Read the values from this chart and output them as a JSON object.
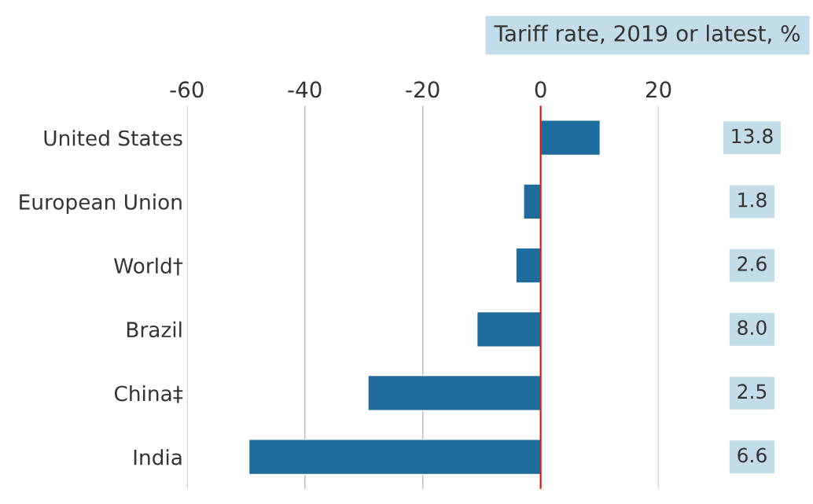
{
  "chart_data": [
    {
      "type": "bar",
      "orientation": "horizontal",
      "categories": [
        "United States",
        "European Union",
        "World†",
        "Brazil",
        "China‡",
        "India"
      ],
      "values": [
        10.1,
        -2.9,
        -4.2,
        -10.8,
        -29.3,
        -49.5
      ],
      "color": "#1f6b9c",
      "xlim": [
        -60,
        20
      ],
      "xticks": [
        -60,
        -40,
        -20,
        0,
        20
      ],
      "grid": "x",
      "ref_lines": [
        {
          "axis": "x",
          "value": 0,
          "color": "#e3120b"
        }
      ]
    },
    {
      "type": "other",
      "title": "Tariff rate, 2019 or latest, %",
      "values": [
        13.8,
        1.8,
        2.6,
        8.0,
        2.5,
        6.6
      ],
      "color": "#c3dcea",
      "value_labels": [
        "13.8",
        "1.8",
        "2.6",
        "8.0",
        "2.5",
        "6.6"
      ]
    }
  ]
}
